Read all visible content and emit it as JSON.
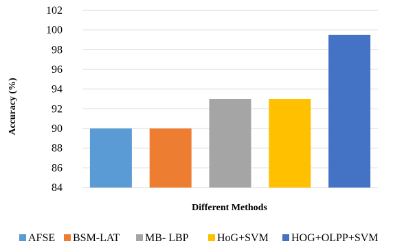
{
  "chart_data": {
    "type": "bar",
    "title": "",
    "xlabel": "Different Methods",
    "ylabel": "Accuracy (%)",
    "ylim": [
      84,
      102
    ],
    "yticks": [
      84,
      86,
      88,
      90,
      92,
      94,
      96,
      98,
      100,
      102
    ],
    "grid": true,
    "legend": "bottom",
    "categories": [
      "AFSE",
      "BSM-LAT",
      "MB- LBP",
      "HoG+SVM",
      "HOG+OLPP+SVM"
    ],
    "values": [
      90,
      90,
      93,
      93,
      99.5
    ],
    "colors": [
      "#5B9BD5",
      "#ED7D31",
      "#A5A5A5",
      "#FFC000",
      "#4472C4"
    ]
  }
}
